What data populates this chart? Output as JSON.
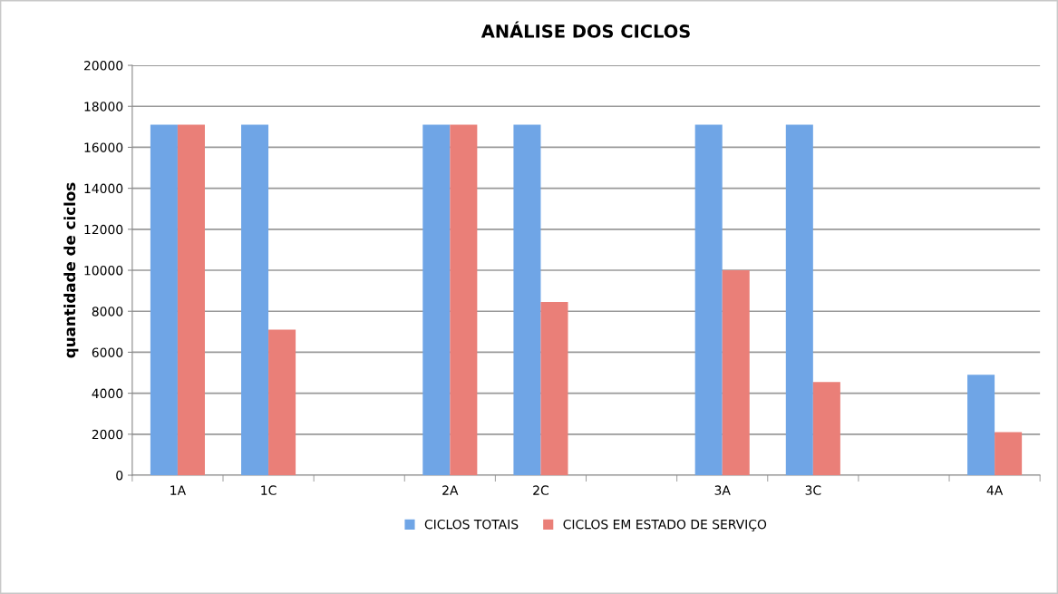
{
  "chart_data": {
    "type": "bar",
    "title": "ANÁLISE DOS CICLOS",
    "ylabel": "quantidade de ciclos",
    "categories": [
      "1A",
      "1C",
      null,
      "2A",
      "2C",
      null,
      "3A",
      "3C",
      null,
      "4A"
    ],
    "series": [
      {
        "name": "CICLOS TOTAIS",
        "color": "#6fa5e6",
        "values": [
          17100,
          17100,
          null,
          17100,
          17100,
          null,
          17100,
          17100,
          null,
          4900
        ]
      },
      {
        "name": "CICLOS EM ESTADO DE SERVIÇO",
        "color": "#ea7f78",
        "values": [
          17100,
          7100,
          null,
          17100,
          8450,
          null,
          10000,
          4550,
          null,
          2100
        ]
      }
    ],
    "ylim": [
      0,
      20000
    ],
    "yticks": [
      0,
      2000,
      4000,
      6000,
      8000,
      10000,
      12000,
      14000,
      16000,
      18000,
      20000
    ],
    "grid": "y",
    "legend": "bottom"
  }
}
